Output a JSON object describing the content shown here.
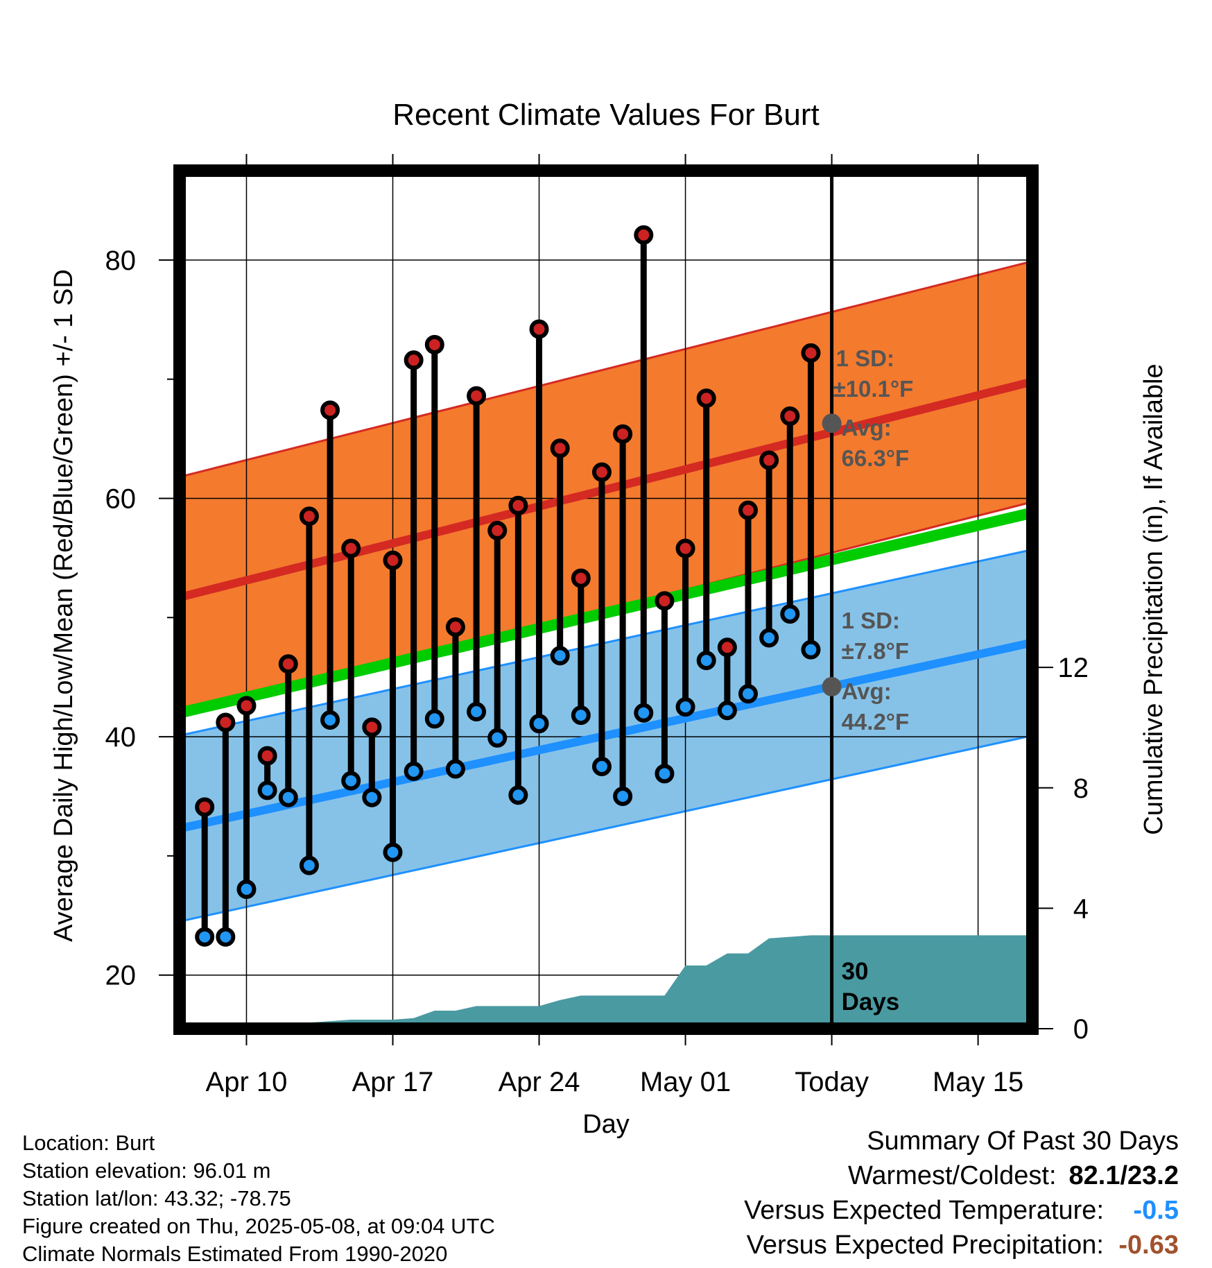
{
  "chart_data": {
    "type": "line",
    "title": "Recent Climate Values For Burt",
    "xlabel": "Day",
    "ylabel": "Average Daily High/Low/Mean (Red/Blue/Green) +/- 1 SD",
    "y2label": "Cumulative Precipitation (in), If Available",
    "x_tick_labels": [
      "Apr 10",
      "Apr 17",
      "Apr 24",
      "May 01",
      "Today",
      "May 15"
    ],
    "x_tick_days": [
      10,
      17,
      24,
      31,
      38,
      45
    ],
    "xlim_days": [
      6.8,
      47.6
    ],
    "today_day": 38,
    "ylim": [
      15.5,
      87.5
    ],
    "y_ticks": [
      20,
      40,
      60,
      80
    ],
    "y2lim": [
      0,
      28.5
    ],
    "y2_ticks": [
      0,
      4,
      8,
      12
    ],
    "grid": true,
    "observed": {
      "days": [
        8,
        9,
        10,
        11,
        12,
        13,
        14,
        15,
        16,
        17,
        18,
        19,
        20,
        21,
        22,
        23,
        24,
        25,
        26,
        27,
        28,
        29,
        30,
        31,
        32,
        33,
        34,
        35,
        36,
        37
      ],
      "highs": [
        34.1,
        41.2,
        42.6,
        38.4,
        46.1,
        58.5,
        67.4,
        55.8,
        40.8,
        54.8,
        71.6,
        72.9,
        49.2,
        68.6,
        57.3,
        59.4,
        74.2,
        64.2,
        53.3,
        62.2,
        65.4,
        82.1,
        51.4,
        55.8,
        68.4,
        47.5,
        59.0,
        63.2,
        66.9,
        72.2
      ],
      "lows": [
        23.2,
        23.2,
        27.2,
        35.5,
        34.9,
        29.2,
        41.4,
        36.3,
        34.9,
        30.3,
        37.1,
        41.5,
        37.3,
        42.1,
        39.9,
        35.1,
        41.1,
        46.8,
        41.8,
        37.5,
        35.0,
        42.0,
        36.9,
        42.5,
        46.4,
        42.2,
        43.6,
        48.3,
        50.3,
        47.3
      ]
    },
    "normal_high": {
      "start": 51.7,
      "end": 69.8,
      "sd": 10.1
    },
    "normal_low": {
      "start": 32.3,
      "end": 47.9,
      "sd": 7.8
    },
    "normal_mean": {
      "start": 42.0,
      "end": 58.8
    },
    "today_avg_high": 66.3,
    "today_avg_low": 44.2,
    "precip_cumulative": {
      "days": [
        7,
        8,
        9,
        10,
        11,
        12,
        13,
        14,
        15,
        16,
        17,
        18,
        19,
        20,
        21,
        22,
        23,
        24,
        25,
        26,
        27,
        28,
        29,
        30,
        31,
        32,
        33,
        34,
        35,
        36,
        37,
        38,
        47.6
      ],
      "values": [
        0.0,
        0.0,
        0.0,
        0.0,
        0.15,
        0.15,
        0.2,
        0.25,
        0.3,
        0.3,
        0.3,
        0.35,
        0.6,
        0.6,
        0.75,
        0.75,
        0.75,
        0.75,
        0.95,
        1.1,
        1.1,
        1.1,
        1.1,
        1.1,
        2.1,
        2.1,
        2.5,
        2.5,
        3.0,
        3.05,
        3.1,
        3.1,
        3.1
      ],
      "label": "30 Days"
    },
    "colors": {
      "high_band": "#f47a2e",
      "high_line": "#d42a22",
      "low_band": "#86c2e8",
      "low_line": "#1e90ff",
      "mean_line": "#00cc00",
      "precip": "#4a9aa2",
      "high_marker": "#cc2222",
      "low_marker": "#2196f3",
      "today_marker": "#555555"
    }
  },
  "annotations": {
    "high_sd": "1 SD:",
    "high_sd_val": "±10.1°F",
    "high_avg": "Avg:",
    "high_avg_val": "66.3°F",
    "low_sd": "1 SD:",
    "low_sd_val": "±7.8°F",
    "low_avg": "Avg:",
    "low_avg_val": "44.2°F",
    "days_num": "30",
    "days_word": "Days"
  },
  "info": {
    "location": "Location: Burt",
    "elevation": "Station elevation: 96.01 m",
    "latlon": "Station lat/lon: 43.32; -78.75",
    "created": "Figure created on Thu, 2025-05-08, at 09:04 UTC",
    "normals": "Climate Normals Estimated From 1990-2020"
  },
  "summary": {
    "heading": "Summary Of Past 30 Days",
    "warm_label": "Warmest/Coldest:",
    "warm_value": "82.1/23.2",
    "temp_label": "Versus Expected Temperature:",
    "temp_value": "-0.5",
    "temp_color": "#1e90ff",
    "precip_label": "Versus Expected Precipitation:",
    "precip_value": "-0.63",
    "precip_color": "#a0522d"
  }
}
